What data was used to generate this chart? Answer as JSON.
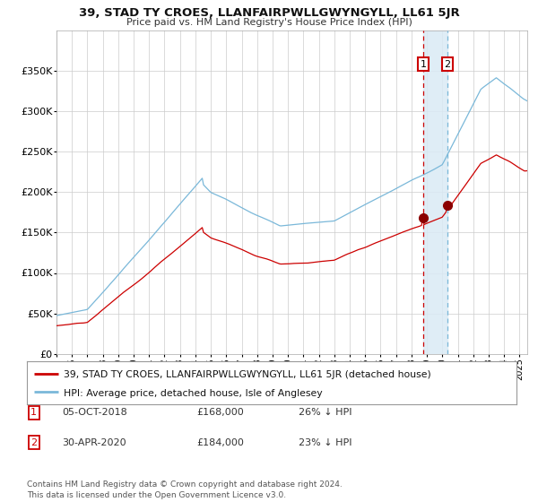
{
  "title": "39, STAD TY CROES, LLANFAIRPWLLGWYNGYLL, LL61 5JR",
  "subtitle": "Price paid vs. HM Land Registry's House Price Index (HPI)",
  "legend_line1": "39, STAD TY CROES, LLANFAIRPWLLGWYNGYLL, LL61 5JR (detached house)",
  "legend_line2": "HPI: Average price, detached house, Isle of Anglesey",
  "annotation1_label": "1",
  "annotation1_date": "05-OCT-2018",
  "annotation1_price": "£168,000",
  "annotation1_hpi": "26% ↓ HPI",
  "annotation2_label": "2",
  "annotation2_date": "30-APR-2020",
  "annotation2_price": "£184,000",
  "annotation2_hpi": "23% ↓ HPI",
  "footer": "Contains HM Land Registry data © Crown copyright and database right 2024.\nThis data is licensed under the Open Government Licence v3.0.",
  "hpi_color": "#7ab8d9",
  "price_color": "#cc0000",
  "dot_color": "#8b0000",
  "vline1_color": "#cc0000",
  "vline2_color": "#7ab8d9",
  "shade_color": "#daeaf5",
  "grid_color": "#cccccc",
  "background_color": "#ffffff",
  "ylim": [
    0,
    400000
  ],
  "yticks": [
    0,
    50000,
    100000,
    150000,
    200000,
    250000,
    300000,
    350000
  ],
  "ytick_labels": [
    "£0",
    "£50K",
    "£100K",
    "£150K",
    "£200K",
    "£250K",
    "£300K",
    "£350K"
  ],
  "sale1_year": 2018.76,
  "sale1_price": 168000,
  "sale2_year": 2020.33,
  "sale2_price": 184000,
  "xmin": 1995.0,
  "xmax": 2025.5
}
